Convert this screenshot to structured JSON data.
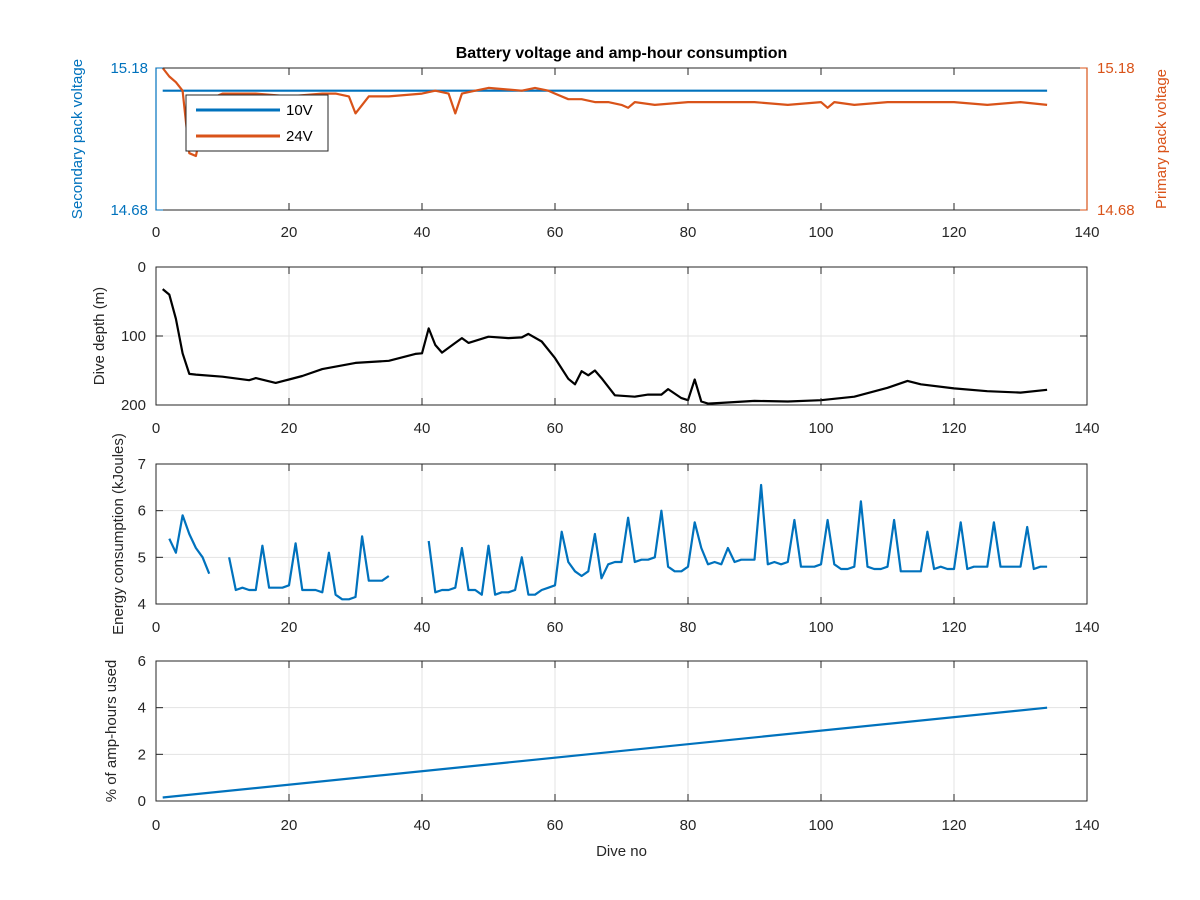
{
  "chart_data": [
    {
      "type": "line",
      "title": "Battery voltage and amp-hour consumption",
      "xlabel": "",
      "ylabel": "Secondary pack voltage",
      "ylabel_right": "Primary pack voltage",
      "xlim": [
        0,
        140
      ],
      "ylim": [
        14.68,
        15.18
      ],
      "ylim_right": [
        14.68,
        15.18
      ],
      "xticks": [
        0,
        20,
        40,
        60,
        80,
        100,
        120,
        140
      ],
      "yticks": [
        14.68,
        15.18
      ],
      "yticks_right": [
        14.68,
        15.18
      ],
      "grid": false,
      "legend": "top-left",
      "series": [
        {
          "name": "10V",
          "color": "#0072BD",
          "axis": "left",
          "x": [
            1,
            134
          ],
          "y": [
            15.1,
            15.1
          ]
        },
        {
          "name": "24V",
          "color": "#D95319",
          "axis": "right",
          "x": [
            1,
            2,
            3,
            4,
            5,
            6,
            7,
            8,
            10,
            15,
            20,
            25,
            27,
            29,
            30,
            32,
            35,
            40,
            42,
            44,
            45,
            46,
            48,
            50,
            55,
            57,
            59,
            60,
            62,
            64,
            66,
            68,
            70,
            71,
            72,
            75,
            80,
            85,
            90,
            95,
            100,
            101,
            102,
            105,
            110,
            115,
            120,
            125,
            130,
            134
          ],
          "y": [
            15.18,
            15.15,
            15.13,
            15.1,
            14.88,
            14.87,
            14.98,
            15.07,
            15.09,
            15.09,
            15.08,
            15.09,
            15.09,
            15.08,
            15.02,
            15.08,
            15.08,
            15.09,
            15.1,
            15.09,
            15.02,
            15.09,
            15.1,
            15.11,
            15.1,
            15.11,
            15.1,
            15.09,
            15.07,
            15.07,
            15.06,
            15.06,
            15.05,
            15.04,
            15.06,
            15.05,
            15.06,
            15.06,
            15.06,
            15.05,
            15.06,
            15.04,
            15.06,
            15.05,
            15.06,
            15.06,
            15.06,
            15.05,
            15.06,
            15.05
          ]
        }
      ]
    },
    {
      "type": "line",
      "title": "",
      "xlabel": "",
      "ylabel": "Dive depth (m)",
      "xlim": [
        0,
        140
      ],
      "ylim": [
        0,
        200
      ],
      "y_reversed": true,
      "xticks": [
        0,
        20,
        40,
        60,
        80,
        100,
        120,
        140
      ],
      "yticks": [
        0,
        100,
        200
      ],
      "grid": true,
      "series": [
        {
          "color": "#000000",
          "x": [
            1,
            2,
            3,
            4,
            5,
            6,
            10,
            14,
            15,
            18,
            20,
            22,
            25,
            30,
            35,
            39,
            40,
            41,
            42,
            43,
            45,
            46,
            47,
            50,
            53,
            55,
            56,
            58,
            60,
            62,
            63,
            64,
            65,
            66,
            67,
            69,
            72,
            74,
            76,
            77,
            79,
            80,
            81,
            82,
            83,
            85,
            90,
            95,
            100,
            105,
            110,
            113,
            115,
            120,
            125,
            130,
            134
          ],
          "y": [
            32,
            40,
            75,
            125,
            155,
            156,
            159,
            164,
            161,
            168,
            163,
            158,
            148,
            139,
            136,
            126,
            125,
            89,
            113,
            124,
            110,
            103,
            110,
            101,
            103,
            102,
            97,
            108,
            132,
            162,
            170,
            151,
            157,
            150,
            161,
            186,
            188,
            185,
            185,
            177,
            190,
            193,
            163,
            195,
            198,
            197,
            194,
            195,
            193,
            188,
            175,
            165,
            170,
            176,
            180,
            182,
            178
          ]
        }
      ]
    },
    {
      "type": "line",
      "title": "",
      "xlabel": "",
      "ylabel": "Energy consumption (kJoules)",
      "xlim": [
        0,
        140
      ],
      "ylim": [
        4,
        7
      ],
      "xticks": [
        0,
        20,
        40,
        60,
        80,
        100,
        120,
        140
      ],
      "yticks": [
        4,
        5,
        6,
        7
      ],
      "grid": true,
      "series": [
        {
          "color": "#0072BD",
          "x": [
            2,
            3,
            4,
            5,
            6,
            7,
            8,
            null,
            11,
            12,
            13,
            14,
            15,
            16,
            17,
            18,
            19,
            20,
            21,
            22,
            23,
            24,
            25,
            26,
            27,
            28,
            29,
            30,
            31,
            32,
            33,
            34,
            35,
            null,
            41,
            42,
            43,
            44,
            45,
            46,
            47,
            48,
            49,
            50,
            51,
            52,
            53,
            54,
            55,
            56,
            57,
            58,
            59,
            60,
            61,
            62,
            63,
            64,
            65,
            66,
            67,
            68,
            69,
            70,
            71,
            72,
            73,
            74,
            75,
            76,
            77,
            78,
            79,
            80,
            81,
            82,
            83,
            84,
            85,
            86,
            87,
            88,
            89,
            90,
            91,
            92,
            93,
            94,
            95,
            96,
            97,
            98,
            99,
            100,
            101,
            102,
            103,
            104,
            105,
            106,
            107,
            108,
            109,
            110,
            111,
            112,
            113,
            114,
            115,
            116,
            117,
            118,
            119,
            120,
            121,
            122,
            123,
            124,
            125,
            126,
            127,
            128,
            129,
            130,
            131,
            132,
            133,
            134
          ],
          "y": [
            5.4,
            5.1,
            5.9,
            5.5,
            5.2,
            5.0,
            4.65,
            null,
            5.0,
            4.3,
            4.35,
            4.3,
            4.3,
            5.25,
            4.35,
            4.35,
            4.35,
            4.4,
            5.3,
            4.3,
            4.3,
            4.3,
            4.25,
            5.1,
            4.2,
            4.1,
            4.1,
            4.15,
            5.45,
            4.5,
            4.5,
            4.5,
            4.6,
            null,
            5.35,
            4.25,
            4.3,
            4.3,
            4.35,
            5.2,
            4.3,
            4.3,
            4.2,
            5.25,
            4.2,
            4.25,
            4.25,
            4.3,
            5.0,
            4.2,
            4.2,
            4.3,
            4.35,
            4.4,
            5.55,
            4.9,
            4.7,
            4.6,
            4.7,
            5.5,
            4.55,
            4.85,
            4.9,
            4.9,
            5.85,
            4.9,
            4.95,
            4.95,
            5.0,
            6.0,
            4.8,
            4.7,
            4.7,
            4.8,
            5.75,
            5.2,
            4.85,
            4.9,
            4.85,
            5.2,
            4.9,
            4.95,
            4.95,
            4.95,
            6.55,
            4.85,
            4.9,
            4.85,
            4.9,
            5.8,
            4.8,
            4.8,
            4.8,
            4.85,
            5.8,
            4.85,
            4.75,
            4.75,
            4.8,
            6.2,
            4.8,
            4.75,
            4.75,
            4.8,
            5.8,
            4.7,
            4.7,
            4.7,
            4.7,
            5.55,
            4.75,
            4.8,
            4.75,
            4.75,
            5.75,
            4.75,
            4.8,
            4.8,
            4.8,
            5.75,
            4.8,
            4.8,
            4.8,
            4.8,
            5.65,
            4.75,
            4.8,
            4.8
          ]
        }
      ]
    },
    {
      "type": "line",
      "title": "",
      "xlabel": "Dive no",
      "ylabel": "% of amp-hours used",
      "xlim": [
        0,
        140
      ],
      "ylim": [
        0,
        6
      ],
      "xticks": [
        0,
        20,
        40,
        60,
        80,
        100,
        120,
        140
      ],
      "yticks": [
        0,
        2,
        4,
        6
      ],
      "grid": true,
      "series": [
        {
          "color": "#0072BD",
          "x": [
            1,
            134
          ],
          "y": [
            0.15,
            4.0
          ]
        }
      ]
    }
  ]
}
